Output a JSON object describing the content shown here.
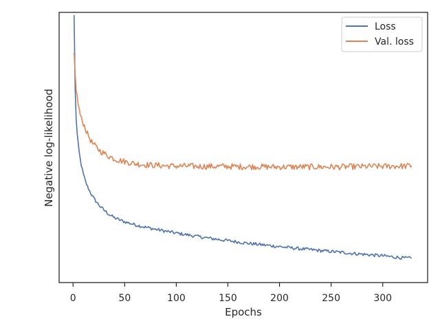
{
  "chart_data": {
    "type": "line",
    "title": "",
    "xlabel": "Epochs",
    "ylabel": "Negative log-likelihood",
    "xlim": [
      -13.5,
      343.5
    ],
    "ylim": [
      0,
      1
    ],
    "x_ticks": [
      0,
      50,
      100,
      150,
      200,
      250,
      300
    ],
    "y_ticks_shown": false,
    "grid": false,
    "legend_position": "top-right",
    "colors": {
      "Loss": "#4c72b0",
      "Val. loss": "#dd8452"
    },
    "series": [
      {
        "name": "Loss",
        "x": [
          1,
          2,
          3,
          4,
          5,
          6,
          7,
          8,
          10,
          12,
          14,
          16,
          18,
          20,
          23,
          26,
          30,
          35,
          40,
          45,
          50,
          60,
          70,
          80,
          90,
          100,
          110,
          120,
          130,
          140,
          150,
          160,
          170,
          180,
          190,
          200,
          210,
          220,
          230,
          240,
          250,
          260,
          270,
          280,
          290,
          300,
          310,
          320,
          328
        ],
        "y": [
          0.99,
          0.72,
          0.61,
          0.55,
          0.51,
          0.48,
          0.455,
          0.435,
          0.4,
          0.375,
          0.355,
          0.34,
          0.325,
          0.312,
          0.297,
          0.283,
          0.268,
          0.252,
          0.24,
          0.232,
          0.225,
          0.214,
          0.205,
          0.197,
          0.19,
          0.183,
          0.177,
          0.171,
          0.165,
          0.16,
          0.155,
          0.15,
          0.145,
          0.141,
          0.137,
          0.133,
          0.129,
          0.125,
          0.122,
          0.118,
          0.115,
          0.112,
          0.108,
          0.105,
          0.102,
          0.099,
          0.095,
          0.091,
          0.09
        ]
      },
      {
        "name": "Val. loss",
        "x": [
          1,
          2,
          3,
          4,
          5,
          6,
          7,
          8,
          10,
          12,
          14,
          16,
          18,
          20,
          23,
          26,
          30,
          35,
          40,
          45,
          50,
          60,
          70,
          80,
          90,
          100,
          110,
          120,
          130,
          140,
          150,
          160,
          170,
          180,
          190,
          200,
          210,
          220,
          230,
          240,
          250,
          260,
          270,
          280,
          290,
          300,
          310,
          320,
          328
        ],
        "y": [
          0.85,
          0.77,
          0.72,
          0.685,
          0.66,
          0.64,
          0.62,
          0.605,
          0.59,
          0.57,
          0.55,
          0.535,
          0.52,
          0.51,
          0.5,
          0.488,
          0.478,
          0.467,
          0.458,
          0.452,
          0.448,
          0.44,
          0.436,
          0.434,
          0.432,
          0.431,
          0.431,
          0.43,
          0.43,
          0.43,
          0.43,
          0.429,
          0.429,
          0.429,
          0.428,
          0.428,
          0.428,
          0.428,
          0.428,
          0.428,
          0.428,
          0.428,
          0.429,
          0.429,
          0.43,
          0.43,
          0.431,
          0.431,
          0.432
        ]
      }
    ]
  }
}
